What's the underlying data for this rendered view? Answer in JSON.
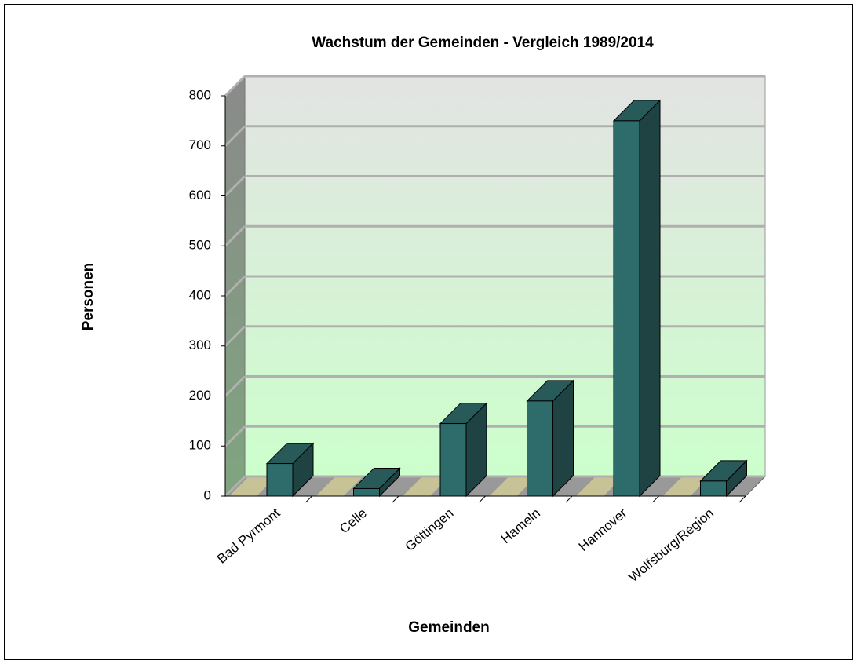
{
  "chart_data": {
    "type": "bar3d",
    "title": "Wachstum der Gemeinden - Vergleich 1989/2014",
    "x_label": "Gemeinden",
    "y_label": "Personen",
    "categories": [
      "Bad Pyrmont",
      "Celle",
      "Göttingen",
      "Hameln",
      "Hannover",
      "Wolfsburg/Region"
    ],
    "values": [
      65,
      15,
      145,
      190,
      750,
      30
    ],
    "color": "#2e6b6b",
    "ylim": [
      0,
      800
    ],
    "yticks": [
      0,
      100,
      200,
      300,
      400,
      500,
      600,
      700,
      800
    ],
    "grid": true
  }
}
